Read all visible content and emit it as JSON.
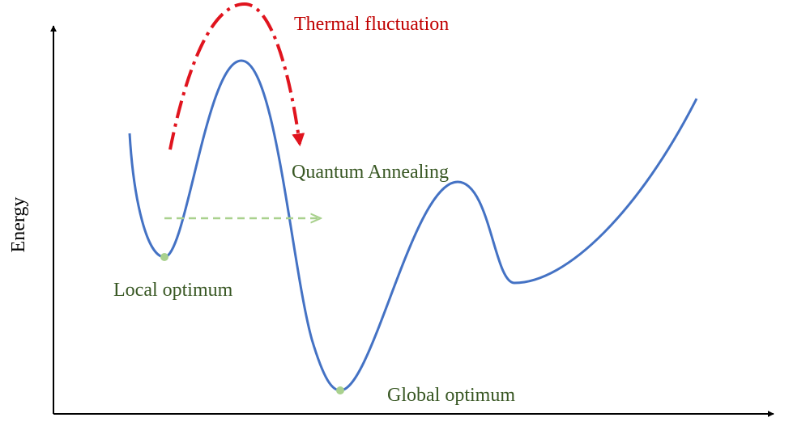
{
  "diagram": {
    "axis_label": "Energy",
    "labels": {
      "thermal": "Thermal fluctuation",
      "quantum": "Quantum Annealing",
      "local": "Local optimum",
      "global": "Global optimum"
    },
    "colors": {
      "axis": "#000000",
      "curve": "#4472c4",
      "thermal": "#e0141e",
      "thermal_text": "#c00000",
      "quantum": "#a9d18e",
      "quantum_text": "#385723",
      "optimum_text": "#385723",
      "point": "#a9d18e"
    }
  }
}
